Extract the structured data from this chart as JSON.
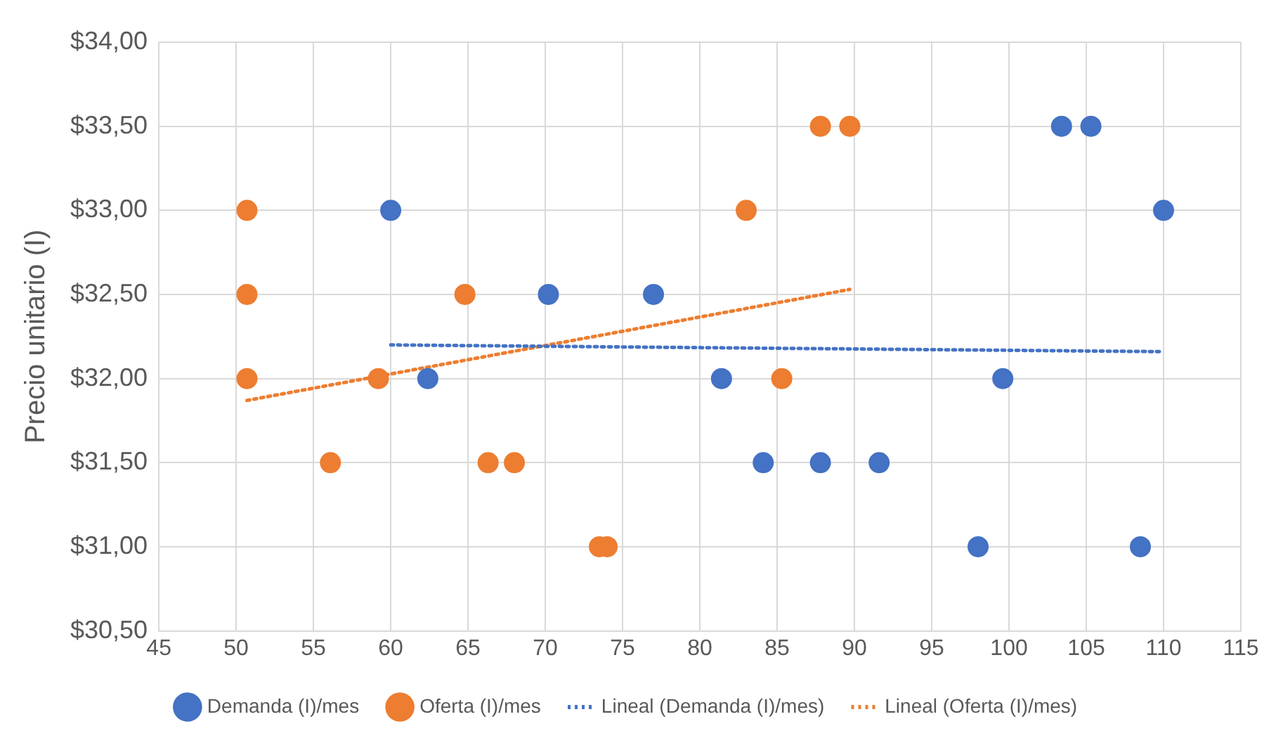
{
  "chart_data": {
    "type": "scatter",
    "ylabel": "Precio unitario (I)",
    "xlim": [
      45,
      115
    ],
    "xticks": [
      45,
      50,
      55,
      60,
      65,
      70,
      75,
      80,
      85,
      90,
      95,
      100,
      105,
      110,
      115
    ],
    "ylim": [
      30.5,
      34
    ],
    "yticks": [
      {
        "value": 30.5,
        "label": "$30,50"
      },
      {
        "value": 31,
        "label": "$31,00"
      },
      {
        "value": 31.5,
        "label": "$31,50"
      },
      {
        "value": 32,
        "label": "$32,00"
      },
      {
        "value": 32.5,
        "label": "$32,50"
      },
      {
        "value": 33,
        "label": "$33,00"
      },
      {
        "value": 33.5,
        "label": "$33,50"
      },
      {
        "value": 34,
        "label": "$34,00"
      }
    ],
    "grid": true,
    "legend": "bottom",
    "marker": "circle",
    "series": [
      {
        "name": "Demanda (I)/mes",
        "color": "#4472c4",
        "x": [
          60,
          62.4,
          70.2,
          77,
          81.4,
          84.1,
          87.8,
          91.6,
          98,
          99.6,
          103.4,
          105.3,
          108.5,
          110
        ],
        "values": [
          33,
          32,
          32.5,
          32.5,
          32,
          31.5,
          31.5,
          31.5,
          31,
          32,
          33.5,
          33.5,
          31,
          33
        ]
      },
      {
        "name": "Oferta (I)/mes",
        "color": "#ed7d31",
        "x": [
          50.7,
          50.7,
          50.7,
          56.1,
          59.2,
          64.8,
          66.3,
          68,
          73.5,
          74,
          83,
          85.3,
          87.8,
          89.7
        ],
        "values": [
          33,
          32.5,
          32,
          31.5,
          32,
          32.5,
          31.5,
          31.5,
          31,
          31,
          33,
          32,
          33.5,
          33.5
        ]
      },
      {
        "name": "Lineal (Demanda (I)/mes)",
        "type": "line",
        "color": "#4472c4",
        "line_style": "dotted",
        "marker": "none",
        "x": [
          60,
          110
        ],
        "values": [
          32.2,
          32.16
        ]
      },
      {
        "name": "Lineal (Oferta (I)/mes)",
        "type": "line",
        "color": "#ed7d31",
        "line_style": "dotted",
        "marker": "none",
        "x": [
          50.7,
          89.7
        ],
        "values": [
          31.87,
          32.53
        ]
      }
    ]
  }
}
